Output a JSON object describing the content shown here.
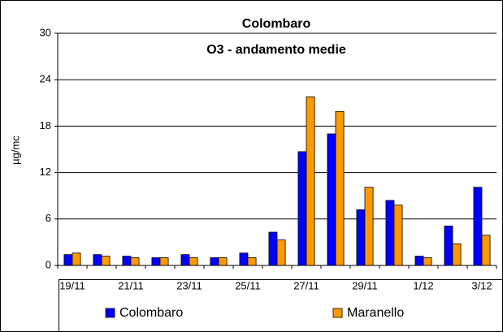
{
  "chart_data": {
    "type": "bar",
    "title": "Colombaro",
    "subtitle": "O3 - andamento medie",
    "y_label": "µg/mc",
    "categories": [
      "19/11",
      null,
      "21/11",
      null,
      "23/11",
      null,
      "25/11",
      null,
      "27/11",
      null,
      "29/11",
      null,
      "1/12",
      null,
      "3/12"
    ],
    "series": [
      {
        "name": "Colombaro",
        "color": "#0000ff",
        "values": [
          1.4,
          1.4,
          1.2,
          1.0,
          1.4,
          1.0,
          1.6,
          4.3,
          14.7,
          17.0,
          7.2,
          8.4,
          1.2,
          5.1,
          10.1
        ]
      },
      {
        "name": "Maranello",
        "color": "#ff9900",
        "values": [
          1.6,
          1.2,
          1.0,
          1.0,
          1.0,
          1.0,
          1.0,
          3.3,
          21.8,
          19.9,
          10.1,
          7.8,
          1.0,
          2.8,
          3.9
        ]
      }
    ],
    "ylim": [
      0,
      30
    ],
    "yticks": [
      0,
      6,
      12,
      18,
      24,
      30
    ],
    "grid": true,
    "legend": "bottom"
  }
}
